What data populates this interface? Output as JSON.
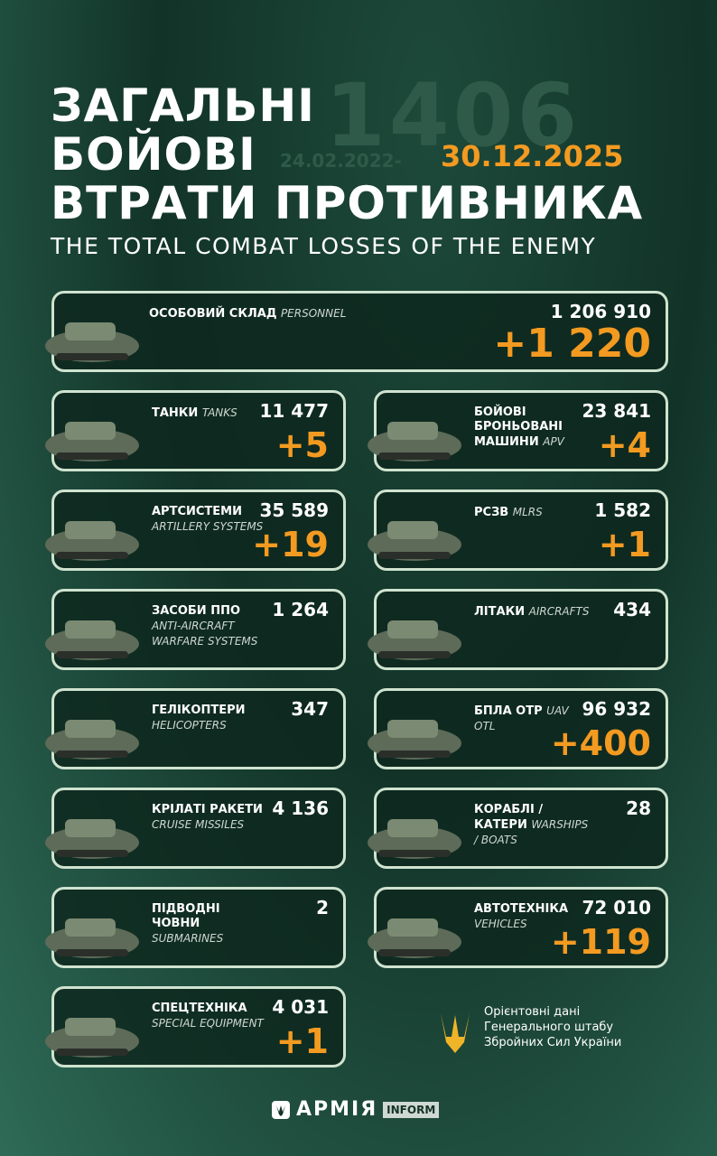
{
  "header": {
    "title_lines": [
      "ЗАГАЛЬНІ",
      "БОЙОВІ",
      "ВТРАТИ ПРОТИВНИКА"
    ],
    "days": "1406",
    "date_start": "24.02.2022-",
    "date_end": "30.12.2025",
    "subtitle": "THE TOTAL COMBAT LOSSES OF THE ENEMY"
  },
  "items": [
    {
      "ua": "ОСОБОВИЙ СКЛАД",
      "en": "PERSONNEL",
      "total": "1 206 910",
      "delta": "+1 220"
    },
    {
      "ua": "ТАНКИ",
      "en": "TANKS",
      "total": "11 477",
      "delta": "+5"
    },
    {
      "ua": "БОЙОВІ БРОНЬОВАНІ МАШИНИ",
      "en": "APV",
      "total": "23 841",
      "delta": "+4"
    },
    {
      "ua": "АРТСИСТЕМИ",
      "en": "ARTILLERY SYSTEMS",
      "total": "35 589",
      "delta": "+19"
    },
    {
      "ua": "РСЗВ",
      "en": "MLRS",
      "total": "1 582",
      "delta": "+1"
    },
    {
      "ua": "ЗАСОБИ ППО",
      "en": "ANTI-AIRCRAFT WARFARE SYSTEMS",
      "total": "1 264"
    },
    {
      "ua": "ЛІТАКИ",
      "en": "AIRCRAFTS",
      "total": "434"
    },
    {
      "ua": "ГЕЛІКОПТЕРИ",
      "en": "HELICOPTERS",
      "total": "347"
    },
    {
      "ua": "БПЛА ОТР",
      "en": "UAV OTL",
      "total": "96 932",
      "delta": "+400"
    },
    {
      "ua": "КРІЛАТІ РАКЕТИ",
      "en": "CRUISE MISSILES",
      "total": "4 136"
    },
    {
      "ua": "КОРАБЛІ / КАТЕРИ",
      "en": "WARSHIPS / BOATS",
      "total": "28"
    },
    {
      "ua": "ПІДВОДНІ ЧОВНИ",
      "en": "SUBMARINES",
      "total": "2"
    },
    {
      "ua": "АВТОТЕХНІКА",
      "en": "VEHICLES",
      "total": "72 010",
      "delta": "+119"
    },
    {
      "ua": "СПЕЦТЕХНІКА",
      "en": "SPECIAL EQUIPMENT",
      "total": "4 031",
      "delta": "+1"
    }
  ],
  "source": [
    "Орієнтовні дані",
    "Генерального штабу",
    "Збройних Сил України"
  ],
  "logo": {
    "name": "АРМІЯ",
    "tag": "INFORM"
  }
}
